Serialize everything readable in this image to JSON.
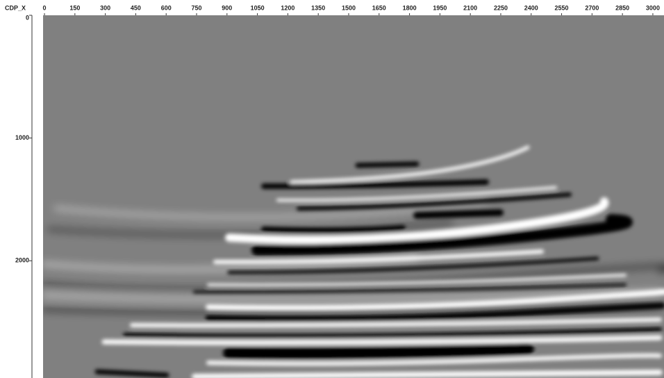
{
  "chart_data": {
    "type": "image",
    "x_label": "CDP_X",
    "xlim": [
      -7,
      3055
    ],
    "ylim": [
      0,
      2955
    ],
    "xticks": [
      0,
      150,
      300,
      450,
      600,
      750,
      900,
      1050,
      1200,
      1350,
      1500,
      1650,
      1800,
      1950,
      2100,
      2250,
      2400,
      2550,
      2700,
      2850,
      3000
    ],
    "yticks": [
      0,
      1000,
      2000
    ]
  }
}
